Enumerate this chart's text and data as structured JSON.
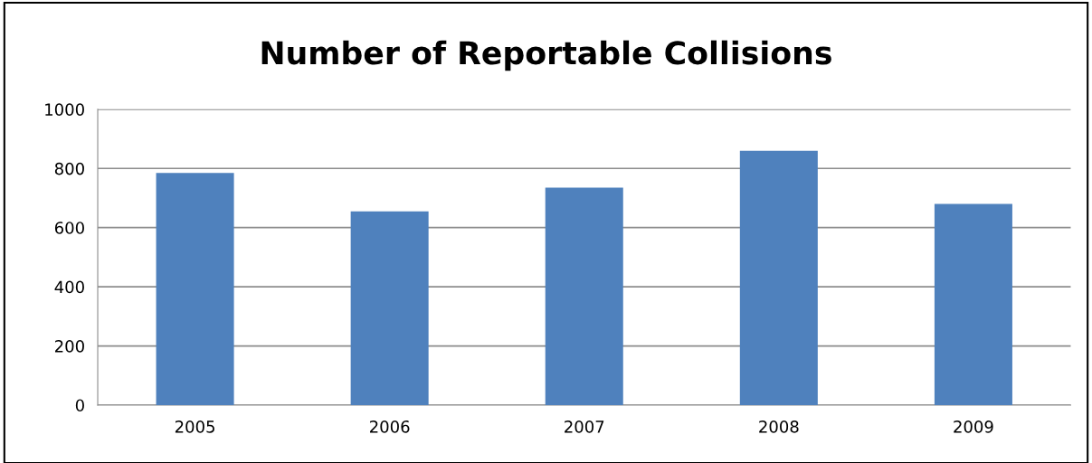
{
  "chart_data": {
    "type": "bar",
    "title": "Number of Reportable Collisions",
    "categories": [
      "2005",
      "2006",
      "2007",
      "2008",
      "2009"
    ],
    "values": [
      785,
      655,
      735,
      860,
      680
    ],
    "color": "#4f81bd",
    "ylim": [
      0,
      1000
    ],
    "yticks": [
      0,
      200,
      400,
      600,
      800,
      1000
    ],
    "grid": "y",
    "legend": false
  }
}
